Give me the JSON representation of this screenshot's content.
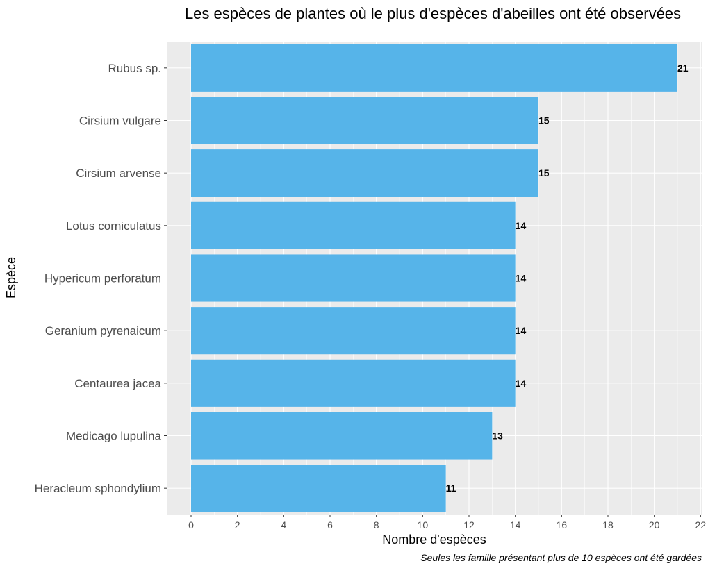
{
  "chart_data": {
    "type": "bar",
    "orientation": "horizontal",
    "title": "Les espèces de plantes où le plus d'espèces d'abeilles ont été observées",
    "xlabel": "Nombre d'espèces",
    "ylabel": "Espèce",
    "caption": "Seules les famille présentant plus de 10 espèces ont été gardées",
    "categories": [
      "Rubus  sp.",
      "Cirsium vulgare",
      "Cirsium arvense",
      "Lotus corniculatus",
      "Hypericum perforatum",
      "Geranium pyrenaicum",
      "Centaurea jacea",
      "Medicago lupulina",
      "Heracleum sphondylium"
    ],
    "values": [
      21,
      15,
      15,
      14,
      14,
      14,
      14,
      13,
      11
    ],
    "data_labels": [
      "21",
      "15",
      "15",
      "14",
      "14",
      "14",
      "14",
      "13",
      "11"
    ],
    "x_ticks": [
      "0",
      "2",
      "4",
      "6",
      "8",
      "10",
      "12",
      "14",
      "16",
      "18",
      "20",
      "22"
    ],
    "xlim": [
      -1.05,
      22.05
    ],
    "grid": true,
    "colors": {
      "bar": "#56B4E9",
      "panel": "#EBEBEB",
      "grid": "#FFFFFF",
      "label": "#000000",
      "axis_text": "#4D4D4D"
    }
  }
}
